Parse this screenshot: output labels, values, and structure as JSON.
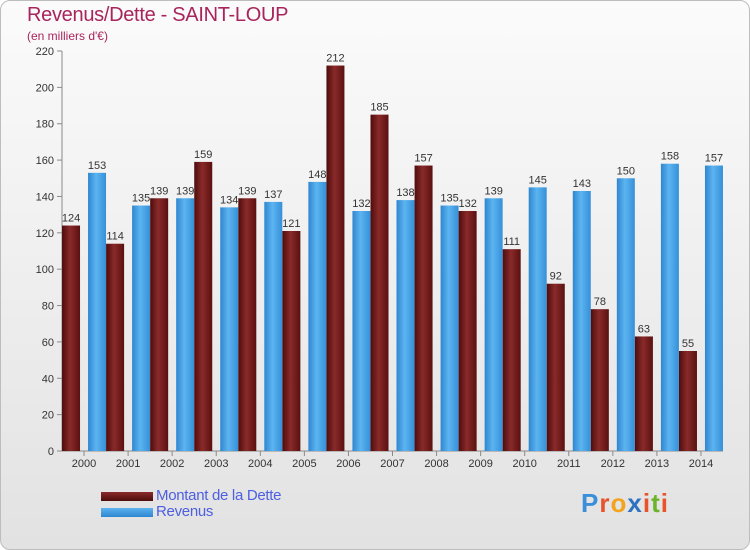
{
  "title": "Revenus/Dette - SAINT-LOUP",
  "subtitle": "(en milliers d'€)",
  "logo": {
    "text": "Proxiti",
    "letters": [
      "P",
      "r",
      "o",
      "x",
      "i",
      "t",
      "i"
    ],
    "colors": [
      "#3a8fd8",
      "#e8532b",
      "#f2a41f",
      "#2c72c0",
      "#e8532b",
      "#6bb42a",
      "#e8532b"
    ]
  },
  "legend": [
    {
      "label": "Montant de la Dette",
      "color": "#6e1515"
    },
    {
      "label": "Revenus",
      "color": "#3d9ae0"
    }
  ],
  "chart_data": {
    "type": "bar",
    "categories": [
      "2000",
      "2001",
      "2002",
      "2003",
      "2004",
      "2005",
      "2006",
      "2007",
      "2008",
      "2009",
      "2010",
      "2011",
      "2012",
      "2013",
      "2014"
    ],
    "series": [
      {
        "name": "Montant de la Dette",
        "values": [
          124,
          114,
          139,
          159,
          139,
          121,
          212,
          185,
          157,
          132,
          111,
          92,
          78,
          63,
          55
        ],
        "color": "#6e1515"
      },
      {
        "name": "Revenus",
        "values": [
          153,
          135,
          139,
          134,
          137,
          148,
          132,
          138,
          135,
          139,
          145,
          143,
          150,
          158,
          157
        ],
        "color": "#3d9ae0"
      }
    ],
    "ylim": [
      0,
      220
    ],
    "yticks": [
      0,
      20,
      40,
      60,
      80,
      100,
      120,
      140,
      160,
      180,
      200,
      220
    ],
    "grid": false
  }
}
